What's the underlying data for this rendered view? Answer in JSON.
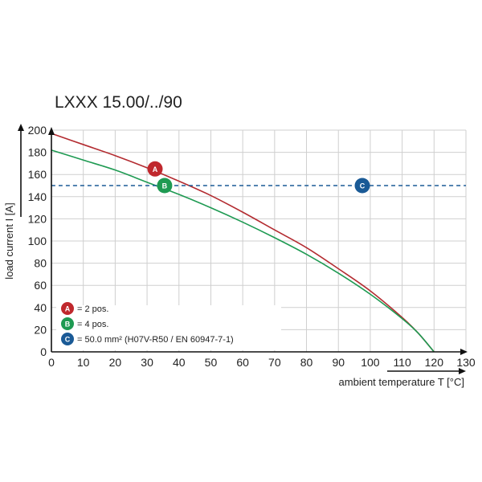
{
  "chart_data": {
    "type": "line",
    "title": "LXXX 15.00/../90",
    "xlabel": "ambient temperature T [°C]",
    "ylabel": "load current I [A]",
    "xlim": [
      0,
      130
    ],
    "ylim": [
      0,
      200
    ],
    "x_ticks": [
      "0",
      "10",
      "20",
      "30",
      "40",
      "50",
      "60",
      "70",
      "80",
      "90",
      "100",
      "110",
      "120",
      "130"
    ],
    "y_ticks": [
      "0",
      "20",
      "40",
      "60",
      "80",
      "100",
      "120",
      "140",
      "160",
      "180",
      "200"
    ],
    "grid": true,
    "series": [
      {
        "marker": "A",
        "color": "#b32b30",
        "x": [
          0,
          10,
          20,
          30,
          40,
          50,
          60,
          70,
          80,
          90,
          100,
          110,
          115,
          120
        ],
        "y": [
          197,
          187,
          177,
          166,
          154,
          141,
          126,
          110,
          94,
          75,
          55,
          31,
          17,
          0
        ]
      },
      {
        "marker": "B",
        "color": "#1e9a52",
        "x": [
          0,
          10,
          20,
          30,
          40,
          50,
          60,
          70,
          80,
          90,
          100,
          110,
          115,
          120
        ],
        "y": [
          182,
          173,
          164,
          153,
          142,
          130,
          117,
          103,
          88,
          71,
          52,
          30,
          17,
          0
        ]
      },
      {
        "marker": "C",
        "color": "#1a5a96",
        "dashed": true,
        "x": [
          0,
          130
        ],
        "y": [
          150,
          150
        ]
      }
    ],
    "markers": [
      {
        "label": "A",
        "x": 32.5,
        "y": 165,
        "color": "#c0282d"
      },
      {
        "label": "B",
        "x": 35.5,
        "y": 150,
        "color": "#1e9a52"
      },
      {
        "label": "C",
        "x": 97.5,
        "y": 150,
        "color": "#1a5a96"
      }
    ],
    "legend": {
      "placement": "bottom-left",
      "entries": [
        {
          "marker": "A",
          "text": "= 2 pos.",
          "color": "#c0282d"
        },
        {
          "marker": "B",
          "text": "= 4 pos.",
          "color": "#1e9a52"
        },
        {
          "marker": "C",
          "text": "= 50.0 mm² (H07V-R50 / EN 60947-7-1)",
          "color": "#1a5a96"
        }
      ]
    }
  }
}
